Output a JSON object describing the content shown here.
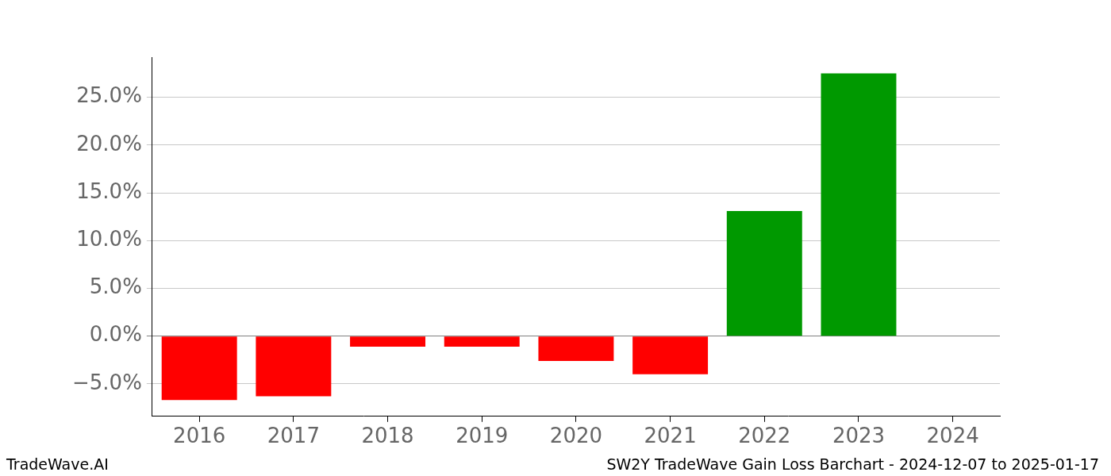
{
  "chart_data": {
    "type": "bar",
    "categories": [
      "2016",
      "2017",
      "2018",
      "2019",
      "2020",
      "2021",
      "2022",
      "2023",
      "2024"
    ],
    "values": [
      -6.7,
      -6.3,
      -1.1,
      -1.1,
      -2.6,
      -4.0,
      13.1,
      27.5,
      null
    ],
    "colors": [
      "#ff0000",
      "#ff0000",
      "#ff0000",
      "#ff0000",
      "#ff0000",
      "#ff0000",
      "#009900",
      "#009900",
      "#009900"
    ],
    "ylim": [
      -8.4,
      29.2
    ],
    "yticks": [
      {
        "value": -5,
        "label": "−5.0%"
      },
      {
        "value": 0,
        "label": "0.0%"
      },
      {
        "value": 5,
        "label": "5.0%"
      },
      {
        "value": 10,
        "label": "10.0%"
      },
      {
        "value": 15,
        "label": "15.0%"
      },
      {
        "value": 20,
        "label": "20.0%"
      },
      {
        "value": 25,
        "label": "25.0%"
      }
    ],
    "grid": true,
    "annotations": [
      "TradeWave.AI",
      "SW2Y TradeWave Gain Loss Barchart - 2024-12-07 to 2025-01-17"
    ]
  }
}
